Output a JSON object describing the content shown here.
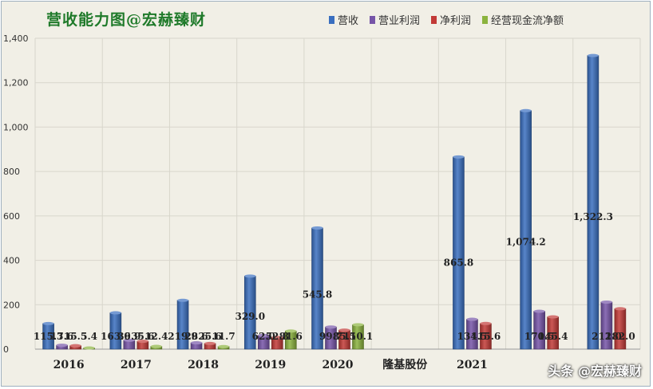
{
  "chart_data": {
    "type": "bar",
    "title": "营收能力图@宏赫臻财",
    "categories": [
      "2016",
      "2017",
      "2018",
      "2019",
      "2020",
      "隆基股份",
      "2021",
      "",
      ""
    ],
    "series": [
      {
        "name": "营收",
        "color": "#3a6fc0",
        "values": [
          115.3,
          163.6,
          219.9,
          329.0,
          545.8,
          null,
          865.8,
          1074.2,
          1322.3
        ],
        "labels": [
          "115.3",
          "163.6",
          "219.9",
          "329.0",
          "545.8",
          "",
          "865.8",
          "1,074.2",
          "1,322.3"
        ]
      },
      {
        "name": "营业利润",
        "color": "#7655a8",
        "values": [
          17.6,
          39.9,
          28.6,
          62.0,
          99.7,
          null,
          134.5,
          170.5,
          212.0
        ],
        "labels": [
          "17.6",
          "39.9",
          "28.6",
          "62.0",
          "99.7",
          "",
          "134.5",
          "170.5",
          "212.0"
        ]
      },
      {
        "name": "净利润",
        "color": "#c23a37",
        "values": [
          15.5,
          35.6,
          25.6,
          52.8,
          85.5,
          null,
          115.6,
          145.4,
          182.0
        ],
        "labels": [
          "15.5",
          "35.6",
          "25.6",
          "52.8",
          "85.5",
          "",
          "115.6",
          "145.4",
          "182.0"
        ]
      },
      {
        "name": "经营现金流净额",
        "color": "#8bb33e",
        "values": [
          5.4,
          12.4,
          11.7,
          81.6,
          110.1,
          null,
          null,
          null,
          null
        ],
        "labels": [
          "5.4",
          "12.4",
          "11.7",
          "81.6",
          "110.1",
          "",
          "",
          "",
          ""
        ]
      }
    ],
    "y_ticks": [
      "0",
      "200",
      "400",
      "600",
      "800",
      "1,000",
      "1,200",
      "1,400"
    ],
    "ylim": [
      0,
      1400
    ],
    "grid": true,
    "legend": "top-right",
    "xlabel": "",
    "ylabel": ""
  },
  "watermark": "头条 @宏赫臻财"
}
